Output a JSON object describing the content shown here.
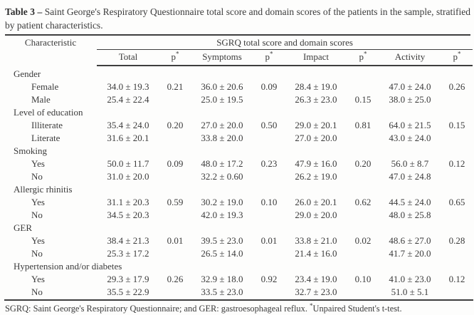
{
  "title": {
    "bold": "Table 3 –",
    "rest": "Saint George's Respiratory Questionnaire total score and domain scores of the patients in the sample, stratified by patient characteristics."
  },
  "header": {
    "characteristic": "Characteristic",
    "group": "SGRQ total score and domain scores",
    "columns": [
      {
        "label": "Total",
        "sup": ""
      },
      {
        "label": "p",
        "sup": "*"
      },
      {
        "label": "Symptoms",
        "sup": ""
      },
      {
        "label": "p",
        "sup": "*"
      },
      {
        "label": "Impact",
        "sup": ""
      },
      {
        "label": "p",
        "sup": "*"
      },
      {
        "label": "Activity",
        "sup": ""
      },
      {
        "label": "p",
        "sup": "*"
      }
    ]
  },
  "sections": [
    {
      "name": "Gender",
      "rows": [
        {
          "label": "Female",
          "cells": [
            "34.0 ± 19.3",
            "0.21",
            "36.0 ± 20.6",
            "0.09",
            "28.4 ± 19.0",
            "",
            "47.0 ± 24.0",
            "0.26"
          ]
        },
        {
          "label": "Male",
          "cells": [
            "25.4 ± 22.4",
            "",
            "25.0 ± 19.5",
            "",
            "26.3 ± 23.0",
            "0.15",
            "38.0 ± 25.0",
            ""
          ]
        }
      ]
    },
    {
      "name": "Level of education",
      "rows": [
        {
          "label": "Illiterate",
          "cells": [
            "35.4 ± 24.0",
            "0.20",
            "27.0 ± 20.0",
            "0.50",
            "29.0 ± 20.1",
            "0.81",
            "64.0 ± 21.5",
            "0.15"
          ]
        },
        {
          "label": "Literate",
          "cells": [
            "31.6 ± 20.1",
            "",
            "33.8 ± 20.0",
            "",
            "27.0 ± 20.0",
            "",
            "43.0 ± 24.0",
            ""
          ]
        }
      ]
    },
    {
      "name": "Smoking",
      "rows": [
        {
          "label": "Yes",
          "cells": [
            "50.0 ± 11.7",
            "0.09",
            "48.0 ± 17.2",
            "0.23",
            "47.9 ± 16.0",
            "0.20",
            "56.0 ± 8.7",
            "0.12"
          ]
        },
        {
          "label": "No",
          "cells": [
            "31.0 ± 20.0",
            "",
            "32.2 ± 0.60",
            "",
            "26.2 ± 19.0",
            "",
            "47.0 ± 24.8",
            ""
          ]
        }
      ]
    },
    {
      "name": "Allergic rhinitis",
      "rows": [
        {
          "label": "Yes",
          "cells": [
            "31.1 ± 20.3",
            "0.59",
            "30.2 ± 19.0",
            "0.10",
            "26.0 ± 20.1",
            "0.62",
            "44.5 ± 24.0",
            "0.65"
          ]
        },
        {
          "label": "No",
          "cells": [
            "34.5 ± 20.3",
            "",
            "42.0 ± 19.3",
            "",
            "29.0 ± 20.0",
            "",
            "48.0 ± 25.8",
            ""
          ]
        }
      ]
    },
    {
      "name": "GER",
      "rows": [
        {
          "label": "Yes",
          "cells": [
            "38.4 ± 21.3",
            "0.01",
            "39.5 ± 23.0",
            "0.01",
            "33.8 ± 21.0",
            "0.02",
            "48.6 ± 27.0",
            "0.28"
          ]
        },
        {
          "label": "No",
          "cells": [
            "25.3 ± 17.2",
            "",
            "26.5 ± 14.0",
            "",
            "21.4 ± 16.0",
            "",
            "41.7 ± 20.0",
            ""
          ]
        }
      ]
    },
    {
      "name": "Hypertension and/or diabetes",
      "rows": [
        {
          "label": "Yes",
          "cells": [
            "29.3 ± 17.9",
            "0.26",
            "32.9 ± 18.0",
            "0.92",
            "23.4 ± 19.0",
            "0.10",
            "41.0 ± 23.0",
            "0.12"
          ]
        },
        {
          "label": "No",
          "cells": [
            "35.5 ± 22.9",
            "",
            "33.5 ± 23.0",
            "",
            "32.7 ± 23.0",
            "",
            "51.0 ± 5.1",
            ""
          ]
        }
      ]
    }
  ],
  "footnote": {
    "pre": "SGRQ: Saint George's Respiratory Questionnaire; and GER: gastroesophageal reflux. ",
    "sup": "*",
    "post": "Unpaired Student's t-test."
  }
}
